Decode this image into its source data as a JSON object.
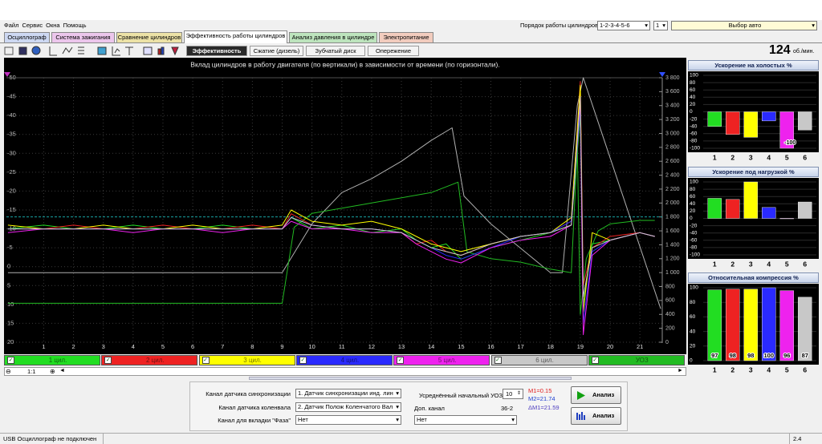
{
  "menu": [
    "Файл",
    "Сервис",
    "Окна",
    "Помощь"
  ],
  "firing_order_label": "Порядок работы цилиндров",
  "firing_order": "1-2-3-4-5-6",
  "cylinder_select": "1",
  "car_select": "Выбор авто",
  "tabs": [
    "Осциллограф",
    "Система зажигания",
    "Сравнение цилиндров",
    "Эффективность работы цилиндров",
    "Анализ давления в цилиндре",
    "Электропитание"
  ],
  "subtabs": [
    "Эффективность",
    "Сжатие (дизель)",
    "Зубчатый диск",
    "Опережение"
  ],
  "rpm": 124,
  "rpm_unit": "об./мин.",
  "chart_data": [
    {
      "type": "line",
      "title": "Вклад цилиндров в работу двигателя (по вертикали) в зависимости от времени (по горизонтали).",
      "x": [
        -0.2,
        1,
        2,
        3,
        4,
        5,
        6,
        7,
        8,
        9,
        9.3,
        10,
        11,
        12,
        13,
        13.5,
        14,
        14.5,
        15,
        16,
        17,
        18,
        18.7,
        19,
        19.1,
        19.4,
        20,
        21,
        21.5
      ],
      "xlim": [
        -0.25,
        21.75
      ],
      "xticks": [
        1,
        2,
        3,
        4,
        5,
        6,
        7,
        8,
        9,
        10,
        11,
        12,
        13,
        14,
        15,
        16,
        17,
        18,
        19,
        20,
        21
      ],
      "ylim": [
        20,
        -50
      ],
      "yticks": [
        -50,
        -45,
        -40,
        -35,
        -30,
        -25,
        -20,
        -15,
        -10,
        -5,
        0,
        5,
        10,
        15,
        20
      ],
      "y2lim": [
        0,
        3800
      ],
      "y2ticks": [
        0,
        200,
        400,
        600,
        800,
        {
          "value": 1000,
          "label": "1 000"
        },
        {
          "value": 1200,
          "label": "1 200"
        },
        {
          "value": 1400,
          "label": "1 400"
        },
        {
          "value": 1600,
          "label": "1 600"
        },
        {
          "value": 1800,
          "label": "1 800"
        },
        {
          "value": 2000,
          "label": "2 000"
        },
        {
          "value": 2200,
          "label": "2 200"
        },
        {
          "value": 2400,
          "label": "2 400"
        },
        {
          "value": 2600,
          "label": "2 600"
        },
        {
          "value": 2800,
          "label": "2 800"
        },
        {
          "value": 3000,
          "label": "3 000"
        },
        {
          "value": 3200,
          "label": "3 200"
        },
        {
          "value": 3400,
          "label": "3 400"
        },
        {
          "value": 3600,
          "label": "3 600"
        },
        {
          "value": 3800,
          "label": "3 800"
        }
      ],
      "grid": true,
      "threshold": {
        "axis": "y2",
        "value": 1800,
        "color": "#1aa3a3"
      },
      "series": [
        {
          "name": "1 цил.",
          "color": "#22dd22",
          "values": [
            -10,
            -11,
            -10,
            -10,
            -11,
            -10,
            -10,
            -11,
            -10,
            -10,
            -13,
            -10,
            -11,
            -9,
            -10,
            -7,
            -5,
            -6,
            -2,
            -5,
            -7,
            -9,
            -11,
            -40,
            10,
            -6,
            -7,
            -9,
            -8
          ]
        },
        {
          "name": "2 цил.",
          "color": "#ee2222",
          "values": [
            -10,
            -10,
            -11,
            -10,
            -10,
            -11,
            -10,
            -10,
            -11,
            -10,
            -14,
            -11,
            -10,
            -10,
            -9,
            -6,
            -7,
            -4,
            -3,
            -6,
            -8,
            -9,
            -12,
            -49,
            5,
            -5,
            -8,
            -9,
            -8
          ]
        },
        {
          "name": "3 цил.",
          "color": "#ffff00",
          "values": [
            -11,
            -10,
            -10,
            -11,
            -10,
            -10,
            -11,
            -10,
            -10,
            -11,
            -15,
            -12,
            -11,
            -12,
            -10,
            -8,
            -6,
            -5,
            -4,
            -6,
            -8,
            -9,
            -13,
            -48,
            12,
            -9,
            -7,
            -9,
            -8
          ]
        },
        {
          "name": "4 цил.",
          "color": "#2a2aff",
          "values": [
            -10,
            -10,
            -10,
            -10,
            -10,
            -10,
            -10,
            -10,
            -10,
            -10,
            -13,
            -11,
            -10,
            -10,
            -9,
            -7,
            -5,
            -3,
            -2,
            -5,
            -8,
            -9,
            -12,
            -42,
            15,
            -4,
            -7,
            -9,
            -8
          ]
        },
        {
          "name": "5 цил.",
          "color": "#ee22ee",
          "values": [
            -9,
            -10,
            -10,
            -10,
            -9,
            -10,
            -10,
            -9,
            -10,
            -10,
            -12,
            -10,
            -10,
            -9,
            -9,
            -6,
            -4,
            -2,
            -1,
            -5,
            -7,
            -8,
            -11,
            -44,
            18,
            -3,
            -7,
            -9,
            -8
          ]
        },
        {
          "name": "6 цил.",
          "color": "#c8c8c8",
          "values": [
            -10,
            -10,
            -10,
            -10,
            -10,
            -10,
            -10,
            -10,
            -10,
            -10,
            -13,
            -11,
            -10,
            -10,
            -9,
            -7,
            -5,
            -4,
            -3,
            -6,
            -8,
            -9,
            -11,
            -45,
            8,
            -5,
            -7,
            -9,
            -8
          ]
        },
        {
          "name": "УОЗ",
          "color": "#22bb22",
          "axis": "y2",
          "x": [
            -0.2,
            9,
            9.4,
            10,
            12,
            14,
            14.9,
            15.2,
            16,
            17,
            18,
            18.7,
            18.9,
            19,
            19.2,
            19.6,
            20,
            21,
            21.5
          ],
          "values": [
            560,
            560,
            1650,
            1850,
            2000,
            2150,
            2300,
            1300,
            1200,
            1150,
            1050,
            1000,
            2800,
            400,
            1200,
            1600,
            1700,
            1750,
            1750
          ]
        },
        {
          "color": "#b0b0b0",
          "axis": "y2",
          "x": [
            -0.2,
            9,
            10,
            11,
            12,
            13,
            14,
            14.7,
            15.1,
            16,
            17,
            18,
            18.4,
            18.9,
            19.1,
            21.7
          ],
          "values": [
            1000,
            1000,
            1700,
            2150,
            2350,
            2600,
            2900,
            3080,
            2100,
            1700,
            1350,
            1000,
            1000,
            3400,
            3800,
            480
          ]
        }
      ]
    },
    {
      "type": "bar",
      "title": "Ускорение на холостых %",
      "categories": [
        "1",
        "2",
        "3",
        "4",
        "5",
        "6"
      ],
      "values": [
        -40,
        -62,
        -70,
        -25,
        -100,
        -50
      ],
      "value_labels": [
        null,
        null,
        null,
        null,
        "-100",
        null
      ],
      "colors": [
        "#22dd22",
        "#ee2222",
        "#ffff00",
        "#2a2aff",
        "#ee22ee",
        "#c8c8c8"
      ],
      "ylim": [
        -100,
        100
      ],
      "yticks": [
        100,
        80,
        60,
        40,
        20,
        0,
        -20,
        -40,
        -60,
        -80,
        -100
      ]
    },
    {
      "type": "bar",
      "title": "Ускорение под нагрузкой %",
      "categories": [
        "1",
        "2",
        "3",
        "4",
        "5",
        "6"
      ],
      "values": [
        55,
        52,
        100,
        30,
        0,
        45
      ],
      "colors": [
        "#22dd22",
        "#ee2222",
        "#ffff00",
        "#2a2aff",
        "#ee22ee",
        "#c8c8c8"
      ],
      "ylim": [
        -100,
        100
      ],
      "yticks": [
        100,
        80,
        60,
        40,
        20,
        0,
        -20,
        -40,
        -60,
        -80,
        -100
      ]
    },
    {
      "type": "bar",
      "title": "Относительная компрессия %",
      "categories": [
        "1",
        "2",
        "3",
        "4",
        "5",
        "6"
      ],
      "values": [
        97,
        98,
        98,
        100,
        96,
        87
      ],
      "data_labels": true,
      "colors": [
        "#22dd22",
        "#ee2222",
        "#ffff00",
        "#2a2aff",
        "#ee22ee",
        "#c8c8c8"
      ],
      "ylim": [
        0,
        100
      ],
      "yticks": [
        100,
        80,
        60,
        40,
        20,
        0
      ]
    }
  ],
  "scale": "1:1",
  "controls": {
    "sync_label": "Канал датчика синхронизации",
    "sync_value": "1. Датчик синхронизации инд. лин",
    "crank_label": "Канал датчика коленвала",
    "crank_value": "2. Датчик Полож Коленчатого Вал",
    "phase_label": "Канал для вкладки \"Фаза\"",
    "phase_value": "Нет",
    "uoz_label": "Усреднённый начальный УОЗ",
    "uoz_value": 10,
    "extra_label": "Доп. канал",
    "extra_info": "36-2",
    "extra_value": "Нет",
    "m1": "M1=0.15",
    "m2": "M2=21.74",
    "dm1": "ΔM1=21.59",
    "analyze": "Анализ",
    "analyze2": "Анализ"
  },
  "status": "USB Осциллограф не подключен",
  "version": "2.4"
}
